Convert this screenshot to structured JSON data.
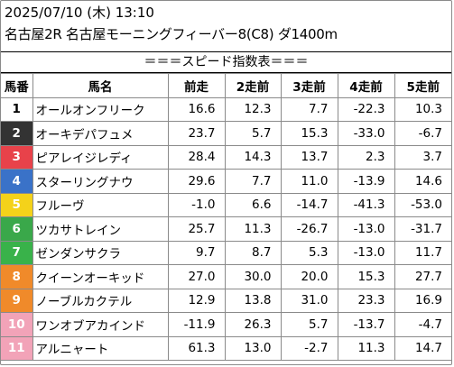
{
  "header": {
    "datetime": "2025/07/10 (木) 13:10",
    "race": "名古屋2R 名古屋モーニングフィーバー8(C8) ダ1400m",
    "banner": "＝＝＝スピード指数表＝＝＝"
  },
  "columns": [
    "馬番",
    "馬名",
    "前走",
    "2走前",
    "3走前",
    "4走前",
    "5走前"
  ],
  "colors": {
    "gate1": "#ffffff",
    "gate2": "#333333",
    "gate3": "#e8424a",
    "gate4": "#3a72c8",
    "gate5": "#f4d21a",
    "gate6": "#3aa84a",
    "gate7": "#39b24a",
    "gate8": "#f08a2a",
    "gate9": "#f08a2a",
    "gate10": "#f2a3b8",
    "gate11": "#f2a3b8"
  },
  "rows": [
    {
      "num": "1",
      "name": "オールオンフリーク",
      "v": [
        "16.6",
        "12.3",
        "7.7",
        "-22.3",
        "10.3"
      ],
      "bg": "#ffffff",
      "fg": "#000000"
    },
    {
      "num": "2",
      "name": "オーキデパフュメ",
      "v": [
        "23.7",
        "5.7",
        "15.3",
        "-33.0",
        "-6.7"
      ],
      "bg": "#333333",
      "fg": "#ffffff"
    },
    {
      "num": "3",
      "name": "ピアレイジレディ",
      "v": [
        "28.4",
        "14.3",
        "13.7",
        "2.3",
        "3.7"
      ],
      "bg": "#e8424a",
      "fg": "#ffffff"
    },
    {
      "num": "4",
      "name": "スターリングナウ",
      "v": [
        "29.6",
        "7.7",
        "11.0",
        "-13.9",
        "14.6"
      ],
      "bg": "#3a72c8",
      "fg": "#ffffff"
    },
    {
      "num": "5",
      "name": "フルーヴ",
      "v": [
        "-1.0",
        "6.6",
        "-14.7",
        "-41.3",
        "-53.0"
      ],
      "bg": "#f4d21a",
      "fg": "#ffffff"
    },
    {
      "num": "6",
      "name": "ツカサトレイン",
      "v": [
        "25.7",
        "11.3",
        "-26.7",
        "-13.0",
        "-31.7"
      ],
      "bg": "#3aa84a",
      "fg": "#ffffff"
    },
    {
      "num": "7",
      "name": "ゼンダンサクラ",
      "v": [
        "9.7",
        "8.7",
        "5.3",
        "-13.0",
        "11.7"
      ],
      "bg": "#39b24a",
      "fg": "#ffffff"
    },
    {
      "num": "8",
      "name": "クイーンオーキッド",
      "v": [
        "27.0",
        "30.0",
        "20.0",
        "15.3",
        "27.7"
      ],
      "bg": "#f08a2a",
      "fg": "#ffffff"
    },
    {
      "num": "9",
      "name": "ノーブルカクテル",
      "v": [
        "12.9",
        "13.8",
        "31.0",
        "23.3",
        "16.9"
      ],
      "bg": "#f08a2a",
      "fg": "#ffffff"
    },
    {
      "num": "10",
      "name": "ワンオブアカインド",
      "v": [
        "-11.9",
        "26.3",
        "5.7",
        "-13.7",
        "-4.7"
      ],
      "bg": "#f2a3b8",
      "fg": "#ffffff"
    },
    {
      "num": "11",
      "name": "アルニャート",
      "v": [
        "61.3",
        "13.0",
        "-2.7",
        "11.3",
        "14.7"
      ],
      "bg": "#f2a3b8",
      "fg": "#ffffff"
    }
  ]
}
